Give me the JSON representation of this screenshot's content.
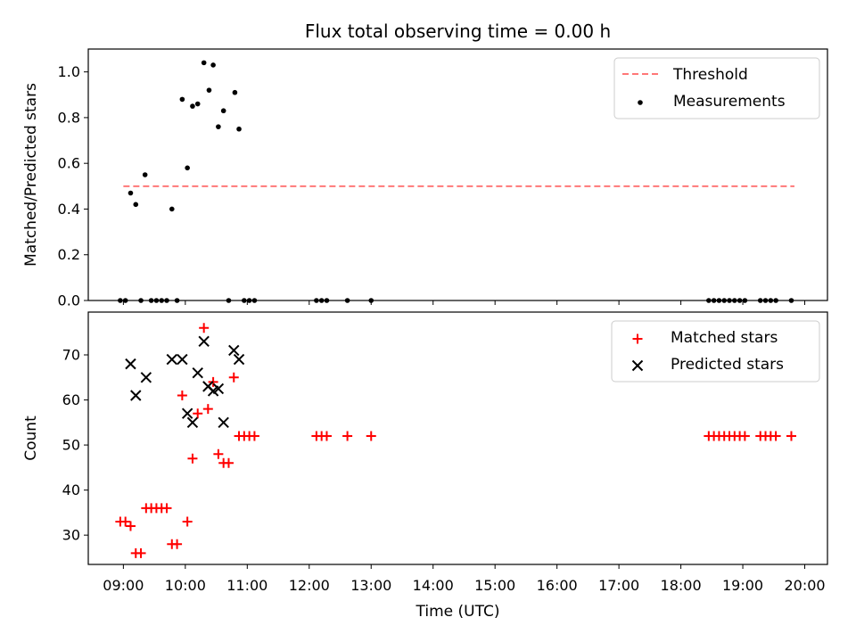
{
  "chart_data": [
    {
      "type": "scatter",
      "title": "Flux total observing time = 0.00 h",
      "ylabel": "Matched/Predicted stars",
      "xlim": [
        "08:26",
        "20:22"
      ],
      "ylim": [
        0,
        1.1
      ],
      "yticks": [
        "0.0",
        "0.2",
        "0.4",
        "0.6",
        "0.8",
        "1.0"
      ],
      "legend_position": "top-right",
      "threshold": {
        "name": "Threshold",
        "value": 0.5,
        "x_range": [
          "09:00",
          "19:50"
        ],
        "color": "#ff7777",
        "style": "dashed"
      },
      "series": [
        {
          "name": "Measurements",
          "color": "#000000",
          "marker": "dot",
          "points": [
            [
              "09:07",
              0.47
            ],
            [
              "09:12",
              0.42
            ],
            [
              "09:21",
              0.55
            ],
            [
              "09:47",
              0.4
            ],
            [
              "09:57",
              0.88
            ],
            [
              "10:02",
              0.58
            ],
            [
              "10:07",
              0.85
            ],
            [
              "10:12",
              0.86
            ],
            [
              "10:18",
              1.04
            ],
            [
              "10:23",
              0.92
            ],
            [
              "10:27",
              1.03
            ],
            [
              "10:32",
              0.76
            ],
            [
              "10:37",
              0.83
            ],
            [
              "10:48",
              0.91
            ],
            [
              "10:52",
              0.75
            ],
            [
              "08:57",
              0.0
            ],
            [
              "09:02",
              0.0
            ],
            [
              "09:17",
              0.0
            ],
            [
              "09:27",
              0.0
            ],
            [
              "09:32",
              0.0
            ],
            [
              "09:37",
              0.0
            ],
            [
              "09:42",
              0.0
            ],
            [
              "09:52",
              0.0
            ],
            [
              "10:42",
              0.0
            ],
            [
              "10:57",
              0.0
            ],
            [
              "11:02",
              0.0
            ],
            [
              "11:07",
              0.0
            ],
            [
              "12:07",
              0.0
            ],
            [
              "12:12",
              0.0
            ],
            [
              "12:17",
              0.0
            ],
            [
              "12:37",
              0.0
            ],
            [
              "13:00",
              0.0
            ],
            [
              "18:27",
              0.0
            ],
            [
              "18:32",
              0.0
            ],
            [
              "18:37",
              0.0
            ],
            [
              "18:42",
              0.0
            ],
            [
              "18:47",
              0.0
            ],
            [
              "18:52",
              0.0
            ],
            [
              "18:57",
              0.0
            ],
            [
              "19:02",
              0.0
            ],
            [
              "19:17",
              0.0
            ],
            [
              "19:22",
              0.0
            ],
            [
              "19:27",
              0.0
            ],
            [
              "19:32",
              0.0
            ],
            [
              "19:47",
              0.0
            ]
          ]
        }
      ]
    },
    {
      "type": "scatter",
      "title": "",
      "xlabel": "Time (UTC)",
      "ylabel": "Count",
      "xlim": [
        "08:26",
        "20:22"
      ],
      "ylim": [
        23.5,
        79.5
      ],
      "yticks": [
        "30",
        "40",
        "50",
        "60",
        "70"
      ],
      "xticks": [
        "09:00",
        "10:00",
        "11:00",
        "12:00",
        "13:00",
        "14:00",
        "15:00",
        "16:00",
        "17:00",
        "18:00",
        "19:00",
        "20:00"
      ],
      "legend_position": "top-right",
      "series": [
        {
          "name": "Matched stars",
          "color": "#ff0000",
          "marker": "plus",
          "points": [
            [
              "08:57",
              33
            ],
            [
              "09:02",
              33
            ],
            [
              "09:07",
              32
            ],
            [
              "09:12",
              26
            ],
            [
              "09:17",
              26
            ],
            [
              "09:22",
              36
            ],
            [
              "09:27",
              36
            ],
            [
              "09:32",
              36
            ],
            [
              "09:37",
              36
            ],
            [
              "09:42",
              36
            ],
            [
              "09:47",
              28
            ],
            [
              "09:52",
              28
            ],
            [
              "09:57",
              61
            ],
            [
              "10:02",
              33
            ],
            [
              "10:07",
              47
            ],
            [
              "10:12",
              57
            ],
            [
              "10:18",
              76
            ],
            [
              "10:22",
              58
            ],
            [
              "10:27",
              64
            ],
            [
              "10:32",
              48
            ],
            [
              "10:37",
              46
            ],
            [
              "10:42",
              46
            ],
            [
              "10:47",
              65
            ],
            [
              "10:52",
              52
            ],
            [
              "10:57",
              52
            ],
            [
              "11:02",
              52
            ],
            [
              "11:07",
              52
            ],
            [
              "12:07",
              52
            ],
            [
              "12:12",
              52
            ],
            [
              "12:17",
              52
            ],
            [
              "12:37",
              52
            ],
            [
              "13:00",
              52
            ],
            [
              "18:27",
              52
            ],
            [
              "18:32",
              52
            ],
            [
              "18:37",
              52
            ],
            [
              "18:42",
              52
            ],
            [
              "18:47",
              52
            ],
            [
              "18:52",
              52
            ],
            [
              "18:57",
              52
            ],
            [
              "19:02",
              52
            ],
            [
              "19:17",
              52
            ],
            [
              "19:22",
              52
            ],
            [
              "19:27",
              52
            ],
            [
              "19:32",
              52
            ],
            [
              "19:47",
              52
            ]
          ]
        },
        {
          "name": "Predicted stars",
          "color": "#000000",
          "marker": "x",
          "points": [
            [
              "09:07",
              68
            ],
            [
              "09:12",
              61
            ],
            [
              "09:22",
              65
            ],
            [
              "09:47",
              69
            ],
            [
              "09:57",
              69
            ],
            [
              "10:02",
              57
            ],
            [
              "10:07",
              55
            ],
            [
              "10:12",
              66
            ],
            [
              "10:18",
              73
            ],
            [
              "10:22",
              63
            ],
            [
              "10:27",
              62
            ],
            [
              "10:32",
              62.5
            ],
            [
              "10:37",
              55
            ],
            [
              "10:47",
              71
            ],
            [
              "10:52",
              69
            ]
          ]
        }
      ]
    }
  ]
}
